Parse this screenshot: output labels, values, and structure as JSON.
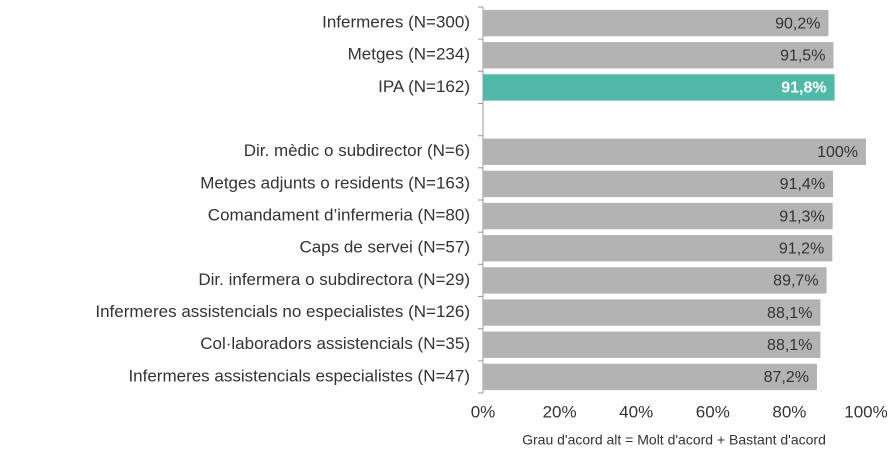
{
  "chart_data": {
    "type": "bar",
    "orientation": "horizontal",
    "categories": [
      "Infermeres (N=300)",
      "Metges (N=234)",
      "IPA (N=162)",
      null,
      "Dir. mèdic o subdirector (N=6)",
      "Metges adjunts o residents (N=163)",
      "Comandament d’infermeria (N=80)",
      "Caps de servei (N=57)",
      "Dir. infermera o subdirectora (N=29)",
      "Infermeres assistencials no especialistes (N=126)",
      "Col·laboradors assistencials (N=35)",
      "Infermeres assistencials especialistes (N=47)"
    ],
    "values": [
      90.2,
      91.5,
      91.8,
      null,
      100,
      91.4,
      91.3,
      91.2,
      89.7,
      88.1,
      88.1,
      87.2
    ],
    "value_labels": [
      "90,2%",
      "91,5%",
      "91,8%",
      null,
      "100%",
      "91,4%",
      "91,3%",
      "91,2%",
      "89,7%",
      "88,1%",
      "88,1%",
      "87,2%"
    ],
    "colors": [
      "#b3b3b3",
      "#b3b3b3",
      "#52b9a9",
      null,
      "#b3b3b3",
      "#b3b3b3",
      "#b3b3b3",
      "#b3b3b3",
      "#b3b3b3",
      "#b3b3b3",
      "#b3b3b3",
      "#b3b3b3"
    ],
    "xlabel": "Grau d'acord alt = Molt d'acord + Bastant d'acord",
    "xlim": [
      0,
      100
    ],
    "xticks": [
      {
        "value": 0,
        "label": "0%"
      },
      {
        "value": 20,
        "label": "20%"
      },
      {
        "value": 40,
        "label": "40%"
      },
      {
        "value": 60,
        "label": "60%"
      },
      {
        "value": 80,
        "label": "80%"
      },
      {
        "value": 100,
        "label": "100%"
      }
    ],
    "grid": false
  }
}
